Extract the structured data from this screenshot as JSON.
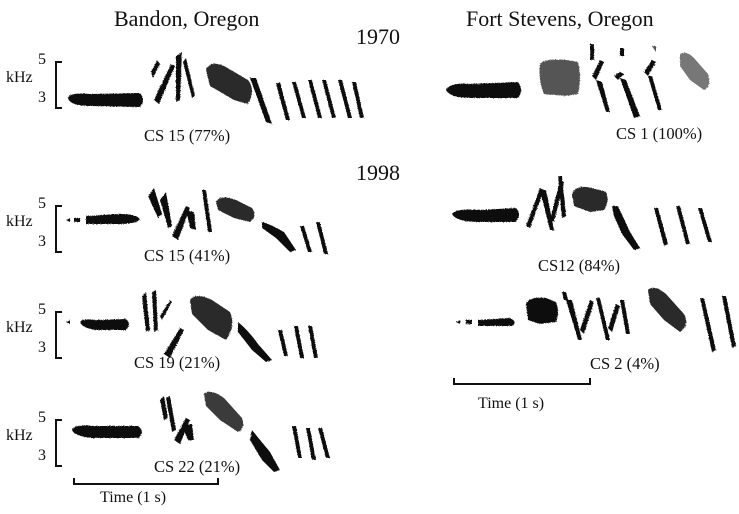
{
  "columns": {
    "left": {
      "title": "Bandon, Oregon"
    },
    "right": {
      "title": "Fort Stevens, Oregon"
    }
  },
  "years": [
    "1970",
    "1998"
  ],
  "axis": {
    "top_tick": "5",
    "unit": "kHz",
    "bottom_tick": "3"
  },
  "sonograms": [
    {
      "site": "Bandon, Oregon",
      "year": "1970",
      "caption": "CS 15 (77%)"
    },
    {
      "site": "Bandon, Oregon",
      "year": "1998",
      "caption": "CS 15 (41%)"
    },
    {
      "site": "Bandon, Oregon",
      "year": "1998",
      "caption": "CS 19 (21%)"
    },
    {
      "site": "Bandon, Oregon",
      "year": "1998",
      "caption": "CS 22 (21%)"
    },
    {
      "site": "Fort Stevens, Oregon",
      "year": "1970",
      "caption": "CS 1 (100%)"
    },
    {
      "site": "Fort Stevens, Oregon",
      "year": "1998",
      "caption": "CS12 (84%)"
    },
    {
      "site": "Fort Stevens, Oregon",
      "year": "1998",
      "caption": "CS 2 (4%)"
    }
  ],
  "time_scale": {
    "label": "Time (1 s)"
  }
}
